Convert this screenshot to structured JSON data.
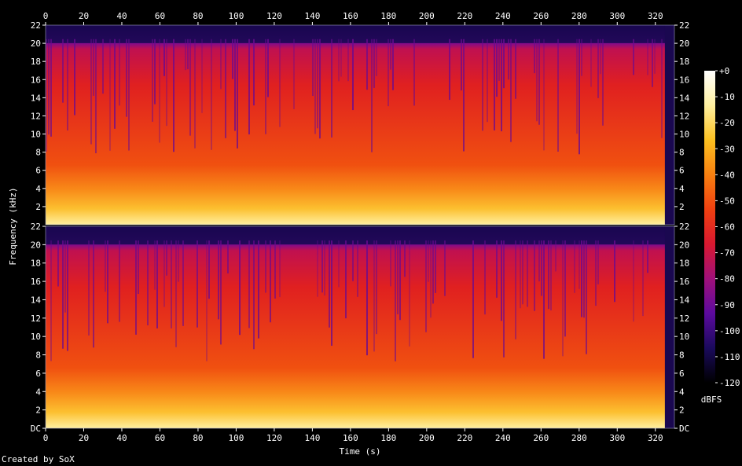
{
  "chart_data": {
    "type": "heatmap",
    "title": "",
    "xlabel": "Time (s)",
    "ylabel": "Frequency (kHz)",
    "xlim": [
      0,
      330
    ],
    "x_ticks": [
      0,
      20,
      40,
      60,
      80,
      100,
      120,
      140,
      160,
      180,
      200,
      220,
      240,
      260,
      280,
      300,
      320
    ],
    "y_ticks_top": [
      "2",
      "4",
      "6",
      "8",
      "10",
      "12",
      "14",
      "16",
      "18",
      "20",
      "22"
    ],
    "y_ticks_bottom": [
      "DC",
      "2",
      "4",
      "6",
      "8",
      "10",
      "12",
      "14",
      "16",
      "18",
      "20",
      "22"
    ],
    "ylim_khz": [
      0,
      22
    ],
    "channels": 2,
    "colorbar": {
      "label": "dBFS",
      "ticks": [
        "+0",
        "-10",
        "-20",
        "-30",
        "-40",
        "-50",
        "-60",
        "-70",
        "-80",
        "-90",
        "-100",
        "-110",
        "-120"
      ],
      "range_db": [
        -120,
        0
      ]
    },
    "colormap": [
      "#000000",
      "#1a0a5c",
      "#5c0a9e",
      "#a0107a",
      "#d81830",
      "#f04010",
      "#f88010",
      "#fcc020",
      "#fff0a0",
      "#ffffff"
    ]
  },
  "footer_text": "Created by SoX"
}
